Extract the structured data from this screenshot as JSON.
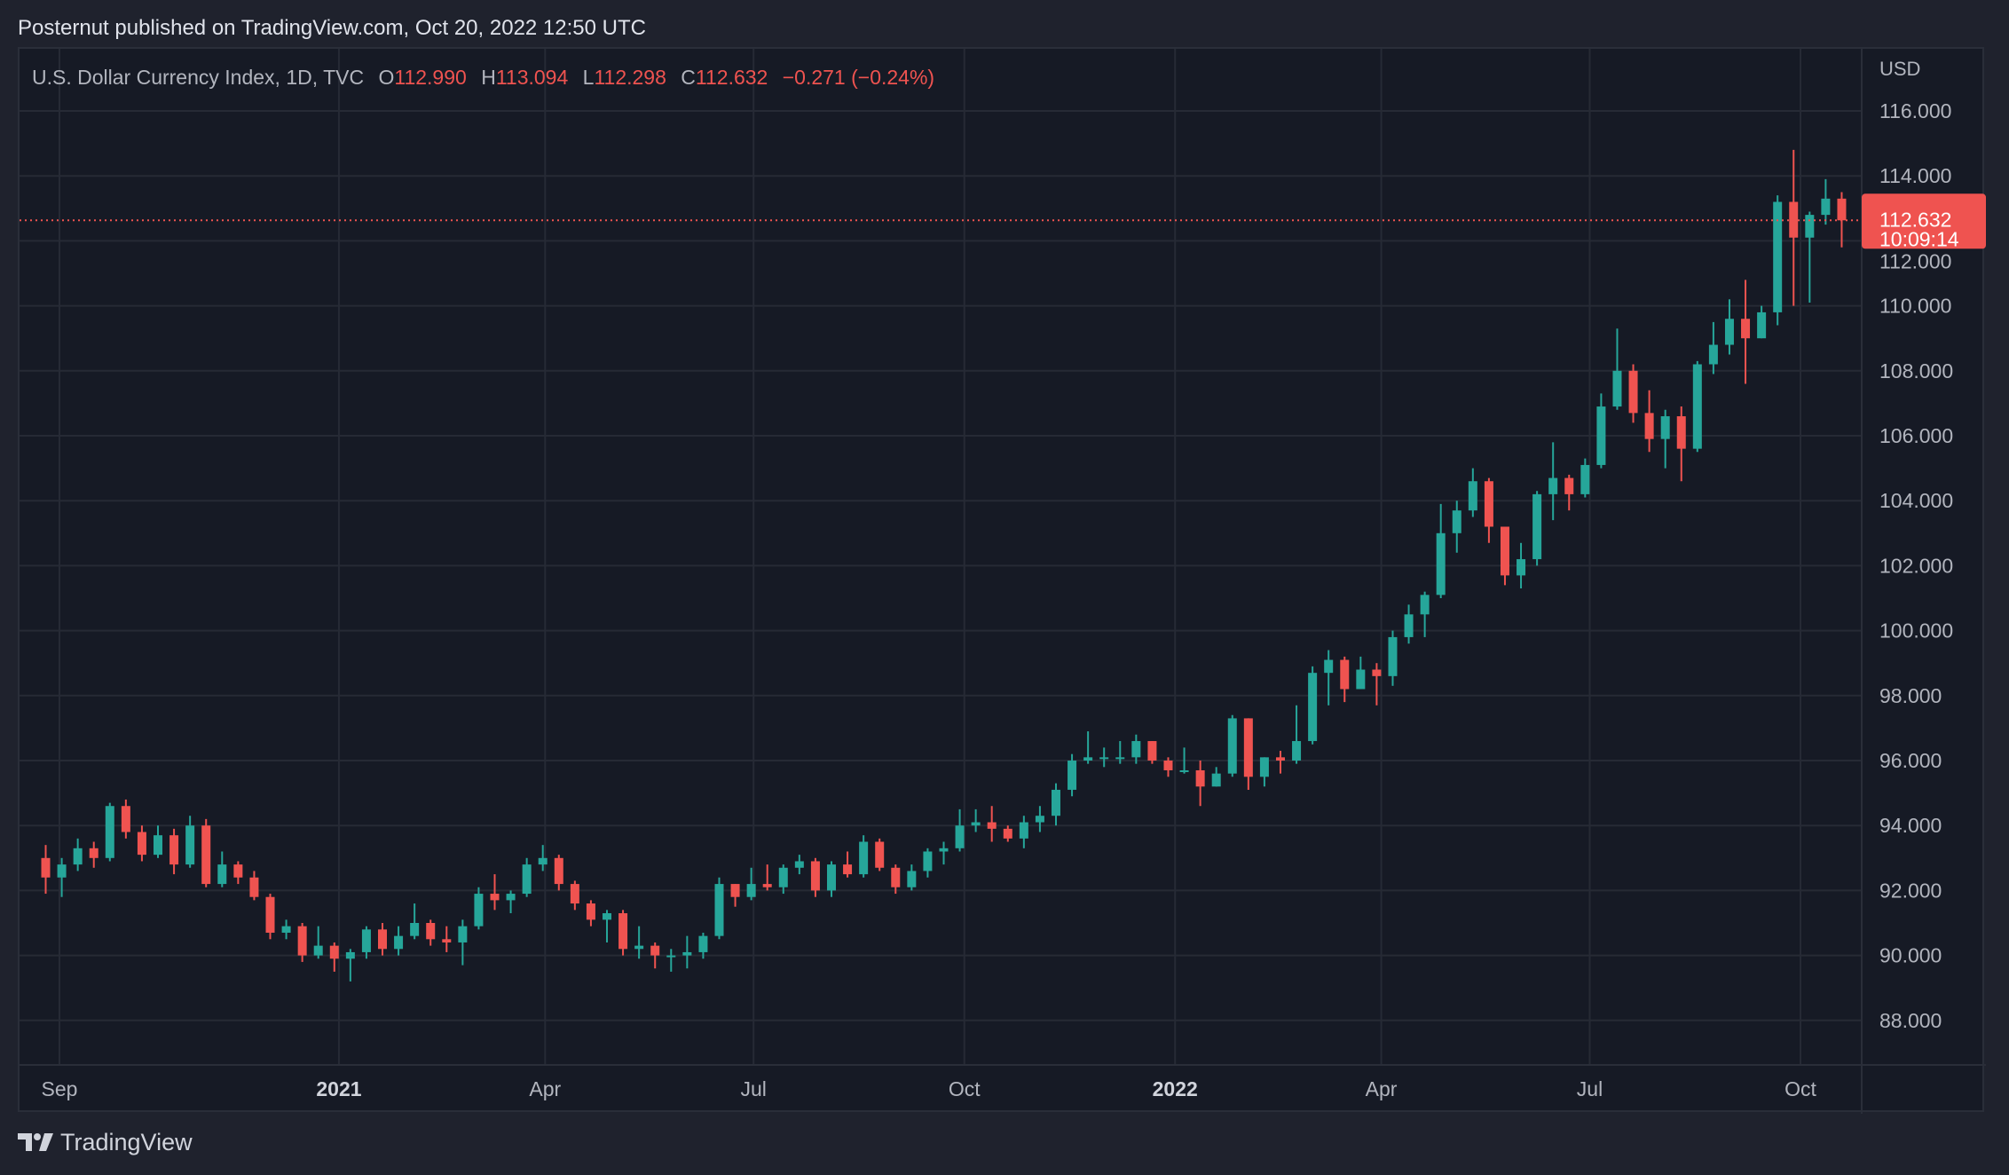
{
  "publisher_line": "Posternut published on TradingView.com, Oct 20, 2022 12:50 UTC",
  "legend": {
    "symbol": "U.S. Dollar Currency Index, 1D, TVC",
    "open_label": "O",
    "open": "112.990",
    "high_label": "H",
    "high": "113.094",
    "low_label": "L",
    "low": "112.298",
    "close_label": "C",
    "close": "112.632",
    "change": "−0.271 (−0.24%)"
  },
  "price_axis": {
    "currency": "USD",
    "last_price": "112.632",
    "countdown": "10:09:14"
  },
  "footer": {
    "brand": "TradingView"
  },
  "colors": {
    "up": "#26a69a",
    "down": "#ef5350",
    "background": "#161a25",
    "grid": "#262a35",
    "last_price": "#ef5350"
  },
  "chart_data": {
    "type": "candlestick",
    "title": "U.S. Dollar Currency Index, 1D, TVC",
    "ylabel": "USD",
    "ylim": [
      87.2,
      117.0
    ],
    "grid": true,
    "last_price": 112.632,
    "y_ticks": [
      "88.000",
      "90.000",
      "92.000",
      "94.000",
      "96.000",
      "98.000",
      "100.000",
      "102.000",
      "104.000",
      "106.000",
      "108.000",
      "110.000",
      "112.000",
      "114.000",
      "116.000"
    ],
    "x_ticks": [
      {
        "label": "Sep",
        "date": "2020-09-01",
        "bold": false
      },
      {
        "label": "2021",
        "date": "2021-01-01",
        "bold": true
      },
      {
        "label": "Apr",
        "date": "2021-04-01",
        "bold": false
      },
      {
        "label": "Jul",
        "date": "2021-07-01",
        "bold": false
      },
      {
        "label": "Oct",
        "date": "2021-10-01",
        "bold": false
      },
      {
        "label": "2022",
        "date": "2022-01-01",
        "bold": true
      },
      {
        "label": "Apr",
        "date": "2022-04-01",
        "bold": false
      },
      {
        "label": "Jul",
        "date": "2022-07-01",
        "bold": false
      },
      {
        "label": "Oct",
        "date": "2022-10-01",
        "bold": false
      }
    ],
    "start_date": "2020-08-28",
    "bar_interval_days": 7,
    "ohlc_weekly_approx": [
      [
        93.0,
        93.4,
        91.9,
        92.4
      ],
      [
        92.4,
        93.0,
        91.8,
        92.8
      ],
      [
        92.8,
        93.6,
        92.6,
        93.3
      ],
      [
        93.3,
        93.5,
        92.7,
        93.0
      ],
      [
        93.0,
        94.7,
        92.9,
        94.6
      ],
      [
        94.6,
        94.8,
        93.6,
        93.8
      ],
      [
        93.8,
        94.0,
        92.9,
        93.1
      ],
      [
        93.1,
        94.0,
        93.0,
        93.7
      ],
      [
        93.7,
        93.9,
        92.5,
        92.8
      ],
      [
        92.8,
        94.3,
        92.7,
        94.0
      ],
      [
        94.0,
        94.2,
        92.1,
        92.2
      ],
      [
        92.2,
        93.2,
        92.1,
        92.8
      ],
      [
        92.8,
        92.9,
        92.2,
        92.4
      ],
      [
        92.4,
        92.6,
        91.7,
        91.8
      ],
      [
        91.8,
        91.9,
        90.5,
        90.7
      ],
      [
        90.7,
        91.1,
        90.5,
        90.9
      ],
      [
        90.9,
        91.0,
        89.8,
        90.0
      ],
      [
        90.0,
        90.9,
        89.9,
        90.3
      ],
      [
        90.3,
        90.4,
        89.5,
        89.9
      ],
      [
        89.9,
        90.2,
        89.2,
        90.1
      ],
      [
        90.1,
        90.9,
        89.9,
        90.8
      ],
      [
        90.8,
        91.0,
        90.0,
        90.2
      ],
      [
        90.2,
        90.9,
        90.0,
        90.6
      ],
      [
        90.6,
        91.6,
        90.5,
        91.0
      ],
      [
        91.0,
        91.1,
        90.3,
        90.5
      ],
      [
        90.5,
        90.9,
        90.1,
        90.4
      ],
      [
        90.4,
        91.1,
        89.7,
        90.9
      ],
      [
        90.9,
        92.1,
        90.8,
        91.9
      ],
      [
        91.9,
        92.5,
        91.4,
        91.7
      ],
      [
        91.7,
        92.0,
        91.3,
        91.9
      ],
      [
        91.9,
        93.0,
        91.8,
        92.8
      ],
      [
        92.8,
        93.4,
        92.6,
        93.0
      ],
      [
        93.0,
        93.1,
        92.0,
        92.2
      ],
      [
        92.2,
        92.3,
        91.4,
        91.6
      ],
      [
        91.6,
        91.7,
        90.9,
        91.1
      ],
      [
        91.1,
        91.4,
        90.4,
        91.3
      ],
      [
        91.3,
        91.4,
        90.0,
        90.2
      ],
      [
        90.2,
        90.9,
        89.9,
        90.3
      ],
      [
        90.3,
        90.4,
        89.6,
        90.0
      ],
      [
        90.0,
        90.2,
        89.5,
        90.0
      ],
      [
        90.0,
        90.6,
        89.6,
        90.1
      ],
      [
        90.1,
        90.7,
        89.9,
        90.6
      ],
      [
        90.6,
        92.4,
        90.5,
        92.2
      ],
      [
        92.2,
        92.2,
        91.5,
        91.8
      ],
      [
        91.8,
        92.7,
        91.7,
        92.2
      ],
      [
        92.2,
        92.8,
        92.0,
        92.1
      ],
      [
        92.1,
        92.8,
        91.9,
        92.7
      ],
      [
        92.7,
        93.1,
        92.5,
        92.9
      ],
      [
        92.9,
        93.0,
        91.8,
        92.0
      ],
      [
        92.0,
        92.9,
        91.8,
        92.8
      ],
      [
        92.8,
        93.2,
        92.4,
        92.5
      ],
      [
        92.5,
        93.7,
        92.4,
        93.5
      ],
      [
        93.5,
        93.6,
        92.6,
        92.7
      ],
      [
        92.7,
        92.8,
        91.9,
        92.1
      ],
      [
        92.1,
        92.8,
        92.0,
        92.6
      ],
      [
        92.6,
        93.3,
        92.4,
        93.2
      ],
      [
        93.2,
        93.5,
        92.8,
        93.3
      ],
      [
        93.3,
        94.5,
        93.2,
        94.0
      ],
      [
        94.0,
        94.5,
        93.8,
        94.1
      ],
      [
        94.1,
        94.6,
        93.5,
        93.9
      ],
      [
        93.9,
        94.0,
        93.5,
        93.6
      ],
      [
        93.6,
        94.3,
        93.3,
        94.1
      ],
      [
        94.1,
        94.6,
        93.8,
        94.3
      ],
      [
        94.3,
        95.3,
        94.0,
        95.1
      ],
      [
        95.1,
        96.2,
        94.9,
        96.0
      ],
      [
        96.0,
        96.9,
        95.9,
        96.1
      ],
      [
        96.1,
        96.4,
        95.8,
        96.1
      ],
      [
        96.1,
        96.6,
        95.9,
        96.1
      ],
      [
        96.1,
        96.8,
        95.9,
        96.6
      ],
      [
        96.6,
        96.6,
        95.9,
        96.0
      ],
      [
        96.0,
        96.1,
        95.5,
        95.7
      ],
      [
        95.7,
        96.4,
        95.6,
        95.7
      ],
      [
        95.7,
        96.0,
        94.6,
        95.2
      ],
      [
        95.2,
        95.8,
        95.2,
        95.6
      ],
      [
        95.6,
        97.4,
        95.5,
        97.3
      ],
      [
        97.3,
        97.3,
        95.1,
        95.5
      ],
      [
        95.5,
        96.1,
        95.2,
        96.1
      ],
      [
        96.1,
        96.3,
        95.6,
        96.0
      ],
      [
        96.0,
        97.7,
        95.9,
        96.6
      ],
      [
        96.6,
        98.9,
        96.5,
        98.7
      ],
      [
        98.7,
        99.4,
        97.7,
        99.1
      ],
      [
        99.1,
        99.2,
        97.8,
        98.2
      ],
      [
        98.2,
        99.2,
        98.2,
        98.8
      ],
      [
        98.8,
        99.0,
        97.7,
        98.6
      ],
      [
        98.6,
        100.0,
        98.3,
        99.8
      ],
      [
        99.8,
        100.8,
        99.6,
        100.5
      ],
      [
        100.5,
        101.2,
        99.8,
        101.1
      ],
      [
        101.1,
        103.9,
        101.0,
        103.0
      ],
      [
        103.0,
        104.0,
        102.4,
        103.7
      ],
      [
        103.7,
        105.0,
        103.5,
        104.6
      ],
      [
        104.6,
        104.7,
        102.7,
        103.2
      ],
      [
        103.2,
        103.2,
        101.4,
        101.7
      ],
      [
        101.7,
        102.7,
        101.3,
        102.2
      ],
      [
        102.2,
        104.3,
        102.0,
        104.2
      ],
      [
        104.2,
        105.8,
        103.4,
        104.7
      ],
      [
        104.7,
        104.8,
        103.7,
        104.2
      ],
      [
        104.2,
        105.3,
        104.1,
        105.1
      ],
      [
        105.1,
        107.3,
        105.0,
        106.9
      ],
      [
        106.9,
        109.3,
        106.8,
        108.0
      ],
      [
        108.0,
        108.2,
        106.4,
        106.7
      ],
      [
        106.7,
        107.4,
        105.5,
        105.9
      ],
      [
        105.9,
        106.8,
        105.0,
        106.6
      ],
      [
        106.6,
        106.9,
        104.6,
        105.6
      ],
      [
        105.6,
        108.3,
        105.5,
        108.2
      ],
      [
        108.2,
        109.5,
        107.9,
        108.8
      ],
      [
        108.8,
        110.2,
        108.5,
        109.6
      ],
      [
        109.6,
        110.8,
        107.6,
        109.0
      ],
      [
        109.0,
        110.0,
        109.0,
        109.8
      ],
      [
        109.8,
        113.4,
        109.4,
        113.2
      ],
      [
        113.2,
        114.8,
        110.0,
        112.1
      ],
      [
        112.1,
        112.9,
        110.1,
        112.8
      ],
      [
        112.8,
        113.9,
        112.5,
        113.3
      ],
      [
        113.3,
        113.5,
        111.8,
        112.632
      ]
    ]
  }
}
